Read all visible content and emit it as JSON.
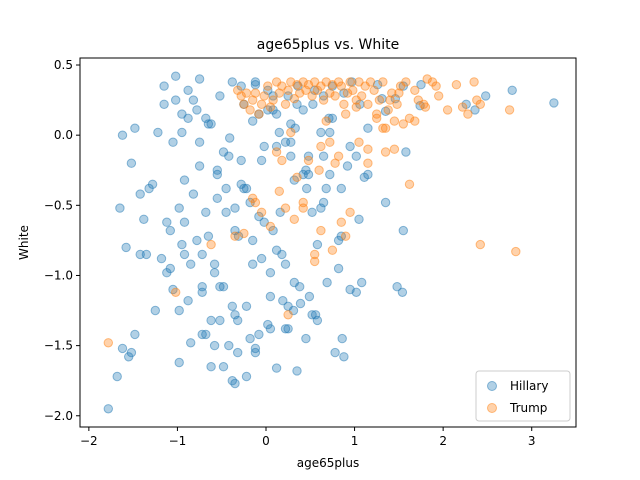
{
  "chart_data": {
    "type": "scatter",
    "title": "age65plus vs. White",
    "xlabel": "age65plus",
    "ylabel": "White",
    "xlim": [
      -2.1,
      3.5
    ],
    "ylim": [
      -2.08,
      0.55
    ],
    "xticks": [
      -2,
      -1,
      0,
      1,
      2,
      3
    ],
    "yticks": [
      0.5,
      0.0,
      -0.5,
      -1.0,
      -1.5,
      -2.0
    ],
    "xtick_labels": [
      "−2",
      "−1",
      "0",
      "1",
      "2",
      "3"
    ],
    "ytick_labels": [
      "0.5",
      "0.0",
      "−0.5",
      "−1.0",
      "−1.5",
      "−2.0"
    ],
    "grid": false,
    "legend_position": "lower-right",
    "colors": {
      "Hillary": "#1f77b4",
      "Trump": "#ff7f0e"
    },
    "series": [
      {
        "name": "Hillary",
        "x": [
          3.25,
          2.78,
          2.48,
          2.36,
          2.26,
          1.75,
          1.74,
          1.55,
          1.46,
          1.48,
          1.54,
          1.58,
          1.35,
          1.31,
          1.26,
          1.15,
          1.11,
          1.08,
          1.06,
          1.02,
          0.97,
          0.95,
          0.88,
          0.86,
          0.82,
          0.75,
          0.71,
          0.69,
          0.65,
          0.62,
          0.58,
          0.56,
          0.53,
          0.49,
          0.46,
          0.42,
          0.39,
          0.36,
          0.33,
          0.31,
          0.28,
          0.25,
          0.22,
          0.19,
          0.16,
          0.12,
          0.08,
          0.05,
          0.02,
          -0.02,
          -0.05,
          -0.08,
          -0.12,
          -0.15,
          -0.18,
          -0.22,
          -0.25,
          -0.28,
          -0.31,
          -0.35,
          -0.38,
          -0.41,
          -0.45,
          -0.48,
          -0.52,
          -0.55,
          -0.58,
          -0.62,
          -0.65,
          -0.68,
          -0.72,
          -0.75,
          -0.78,
          -0.82,
          -0.85,
          -0.88,
          -0.92,
          -0.95,
          -0.98,
          -1.02,
          -1.05,
          -1.08,
          -1.12,
          -1.15,
          -1.22,
          -1.28,
          -1.35,
          -1.42,
          -1.48,
          -1.52,
          -1.55,
          -1.62,
          -1.65,
          -1.68,
          -1.78,
          -1.02,
          -0.82,
          -0.62,
          -0.42,
          -0.22,
          -0.02,
          0.18,
          0.38,
          0.58,
          0.78,
          -0.95,
          -0.75,
          -0.55,
          -0.35,
          -0.15,
          0.05,
          0.25,
          0.45,
          0.65,
          0.85,
          1.05,
          -0.88,
          -0.68,
          -0.48,
          -0.28,
          -0.08,
          0.12,
          0.32,
          0.52,
          0.72,
          0.92,
          -0.92,
          -0.72,
          -0.52,
          -0.32,
          -0.12,
          0.08,
          0.28,
          0.48,
          0.68,
          -1.15,
          -0.95,
          -0.75,
          -0.55,
          -0.35,
          -0.15,
          0.05,
          0.25,
          0.45,
          0.65,
          0.85,
          -1.08,
          -0.88,
          -0.68,
          -0.48,
          -0.28,
          -0.08,
          0.12,
          0.32,
          0.52,
          0.72,
          -0.98,
          -0.78,
          -0.58,
          -0.38,
          -0.18,
          0.02,
          0.22,
          0.42,
          0.62,
          0.82,
          1.02,
          -1.32,
          -1.12,
          -0.92,
          -0.72,
          -0.52,
          -0.32,
          -0.12,
          0.08,
          0.28,
          0.48,
          -1.48,
          -1.25,
          -1.05,
          -0.85,
          -0.65,
          -0.45,
          -0.25,
          -0.05,
          0.15,
          0.35,
          0.55,
          0.75,
          0.95,
          1.15,
          1.35,
          1.55,
          -1.62,
          -1.58,
          -1.42,
          -1.38,
          -1.52,
          -1.18,
          -0.98,
          -0.72,
          -0.58,
          -0.42,
          -0.38,
          -0.22,
          0.12,
          0.35,
          0.88,
          -0.35,
          -0.62,
          0.22,
          0.02,
          -0.12
        ],
        "y": [
          0.23,
          0.32,
          0.28,
          0.18,
          0.22,
          0.36,
          0.21,
          0.35,
          0.26,
          -1.08,
          -1.12,
          -0.12,
          0.17,
          0.26,
          0.36,
          0.05,
          -0.3,
          -1.05,
          0.22,
          -1.12,
          0.38,
          -1.1,
          0.3,
          -1.45,
          -0.95,
          0.35,
          0.12,
          -1.05,
          0.28,
          0.02,
          -0.78,
          -1.28,
          0.22,
          -1.15,
          -0.38,
          0.18,
          -1.2,
          0.35,
          0.05,
          -1.25,
          -0.15,
          0.28,
          -0.92,
          -1.18,
          -0.55,
          0.15,
          -0.68,
          -1.38,
          0.32,
          -0.08,
          -0.88,
          -1.42,
          0.36,
          0.1,
          -0.48,
          -1.22,
          0.22,
          -0.18,
          -0.72,
          -1.28,
          0.38,
          -0.02,
          -0.38,
          -1.08,
          0.28,
          -0.25,
          -0.92,
          -1.32,
          0.08,
          -0.55,
          -1.12,
          0.4,
          0.18,
          -0.42,
          -1.48,
          0.12,
          -0.32,
          -0.78,
          -1.25,
          0.25,
          -0.05,
          -0.68,
          -0.98,
          0.35,
          0.02,
          -0.35,
          -0.85,
          -0.42,
          0.05,
          -0.2,
          -1.58,
          0.0,
          -0.52,
          -1.72,
          -1.95,
          0.42,
          0.25,
          0.08,
          -0.15,
          -0.38,
          -0.62,
          -0.85,
          -1.08,
          -1.32,
          -1.55,
          0.15,
          -0.05,
          -0.28,
          -0.52,
          -0.75,
          -0.98,
          -1.22,
          -1.45,
          -0.15,
          -0.38,
          -0.6,
          0.32,
          0.12,
          -0.12,
          -0.35,
          -0.58,
          -0.82,
          -1.05,
          -1.28,
          0.02,
          -0.22,
          -0.62,
          -0.85,
          -1.08,
          -1.32,
          -1.55,
          0.28,
          0.08,
          -0.15,
          -0.38,
          0.22,
          0.02,
          -0.22,
          -0.45,
          -0.68,
          -0.92,
          -1.15,
          -1.38,
          -0.25,
          -0.48,
          -0.72,
          -0.95,
          -1.18,
          -1.42,
          -1.65,
          0.35,
          0.15,
          -0.08,
          -0.32,
          -0.55,
          -0.28,
          -0.52,
          -0.75,
          -0.98,
          -1.22,
          -1.45,
          0.18,
          -0.05,
          -0.28,
          -0.52,
          -0.75,
          -0.15,
          -0.38,
          -0.62,
          -0.85,
          -1.08,
          -1.32,
          -1.55,
          0.38,
          0.18,
          -0.05,
          -0.28,
          -1.42,
          -1.25,
          -1.1,
          -0.92,
          -0.72,
          -0.55,
          -0.38,
          -0.18,
          0.02,
          0.22,
          0.32,
          0.12,
          -0.08,
          -0.28,
          -0.48,
          -0.68,
          -1.52,
          -0.8,
          -0.85,
          -0.6,
          -1.55,
          -0.88,
          -1.62,
          -1.42,
          -1.5,
          -1.5,
          -1.75,
          -1.72,
          -1.66,
          -1.68,
          -1.58,
          -1.77,
          -1.65,
          -1.38,
          -1.35,
          -1.52
        ],
        "opacity": 0.35
      },
      {
        "name": "Trump",
        "x": [
          2.82,
          2.75,
          2.42,
          2.38,
          2.28,
          2.15,
          2.05,
          1.95,
          1.88,
          1.82,
          1.78,
          1.72,
          1.68,
          1.62,
          1.58,
          1.55,
          1.52,
          1.48,
          1.45,
          1.42,
          1.38,
          1.35,
          1.32,
          1.28,
          1.25,
          1.22,
          1.18,
          1.15,
          1.12,
          1.08,
          1.05,
          1.02,
          0.98,
          0.95,
          0.92,
          0.88,
          0.85,
          0.82,
          0.78,
          0.75,
          0.72,
          0.68,
          0.65,
          0.62,
          0.58,
          0.55,
          0.52,
          0.48,
          0.45,
          0.42,
          0.38,
          0.35,
          0.32,
          0.28,
          0.25,
          0.22,
          0.18,
          0.15,
          0.12,
          0.08,
          0.05,
          0.02,
          -0.02,
          -0.05,
          -0.08,
          -0.12,
          -0.15,
          -0.18,
          -0.22,
          -0.25,
          -0.28,
          -0.32,
          1.62,
          1.35,
          1.15,
          1.05,
          0.95,
          0.9,
          0.85,
          0.75,
          0.62,
          0.55,
          0.42,
          0.32,
          0.22,
          0.15,
          0.05,
          -0.05,
          -0.15,
          -0.25,
          -0.35,
          -0.62,
          2.42,
          1.32,
          1.25,
          1.45,
          0.82,
          0.72,
          0.48,
          0.62,
          0.28,
          0.12,
          -0.12,
          0.42,
          0.55,
          0.25,
          0.18,
          -1.02,
          -1.78,
          1.8,
          1.5,
          1.68,
          2.35,
          1.92,
          2.22,
          0.68,
          0.9,
          1.02,
          1.4,
          0.35,
          0.6,
          0.78,
          1.15
        ],
        "y": [
          -0.83,
          0.18,
          0.22,
          0.25,
          0.15,
          0.36,
          0.18,
          0.28,
          0.38,
          0.4,
          0.22,
          0.25,
          0.32,
          0.12,
          0.38,
          0.08,
          0.35,
          0.22,
          0.1,
          0.3,
          0.18,
          0.05,
          0.38,
          0.25,
          0.15,
          0.32,
          0.38,
          0.22,
          0.35,
          0.28,
          0.38,
          0.25,
          0.32,
          0.38,
          0.3,
          0.22,
          0.35,
          0.38,
          0.28,
          0.36,
          0.3,
          0.38,
          0.25,
          0.35,
          0.32,
          0.38,
          0.28,
          0.36,
          0.32,
          0.38,
          0.3,
          0.36,
          0.26,
          0.38,
          0.32,
          0.22,
          0.35,
          0.3,
          0.38,
          0.25,
          0.2,
          0.35,
          0.28,
          0.22,
          0.15,
          0.3,
          0.25,
          0.18,
          0.3,
          0.22,
          0.28,
          0.32,
          -0.35,
          -0.12,
          -0.2,
          -0.05,
          -0.55,
          -0.72,
          -0.62,
          -0.82,
          -0.68,
          -0.85,
          -0.48,
          -0.6,
          -0.52,
          -0.4,
          -0.65,
          -0.55,
          -0.45,
          -0.7,
          -0.72,
          -0.78,
          -0.78,
          0.05,
          0.12,
          -0.1,
          -0.15,
          -0.05,
          -0.18,
          -0.08,
          0.02,
          -0.12,
          -0.48,
          -0.52,
          -0.9,
          -1.28,
          -0.18,
          -1.12,
          -1.48,
          0.2,
          0.3,
          0.1,
          0.38,
          0.35,
          0.2,
          0.1,
          0.15,
          0.2,
          0.25,
          -0.3,
          -0.25,
          -0.2,
          -0.1
        ],
        "opacity": 0.35
      }
    ]
  }
}
